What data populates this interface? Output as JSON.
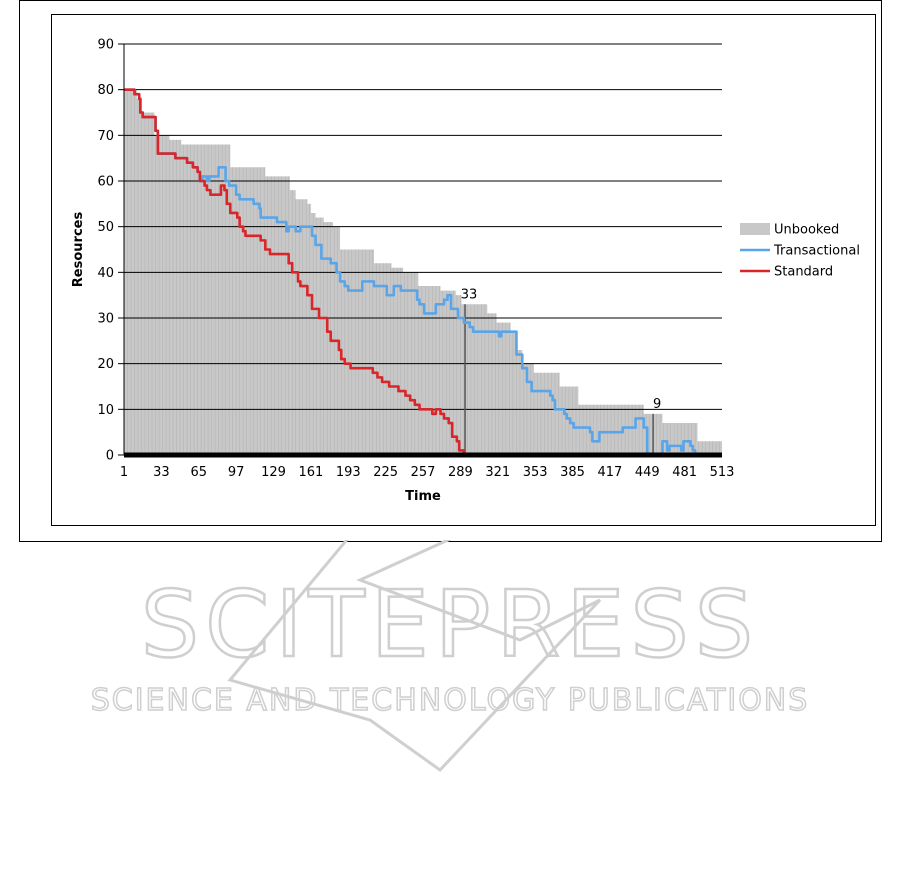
{
  "chart_data": {
    "type": "line",
    "xlabel": "Time",
    "ylabel": "Resources",
    "xlim": [
      1,
      513
    ],
    "ylim": [
      0,
      90
    ],
    "x_ticks": [
      "1",
      "33",
      "65",
      "97",
      "129",
      "161",
      "193",
      "225",
      "257",
      "289",
      "321",
      "353",
      "385",
      "417",
      "449",
      "481",
      "513"
    ],
    "y_ticks": [
      "0",
      "10",
      "20",
      "30",
      "40",
      "50",
      "60",
      "70",
      "80",
      "90"
    ],
    "grid": "horizontal",
    "legend_position": "right",
    "annotations": [
      {
        "x": 293,
        "y": 33,
        "label": "33"
      },
      {
        "x": 454,
        "y": 9,
        "label": "9"
      }
    ],
    "series": [
      {
        "name": "Unbooked",
        "kind": "area",
        "color": "#c8c8c8",
        "points": [
          [
            1,
            80
          ],
          [
            12,
            78
          ],
          [
            16,
            75
          ],
          [
            27,
            70
          ],
          [
            40,
            69
          ],
          [
            50,
            68
          ],
          [
            88,
            68
          ],
          [
            92,
            63
          ],
          [
            120,
            63
          ],
          [
            122,
            61
          ],
          [
            140,
            61
          ],
          [
            143,
            58
          ],
          [
            148,
            56
          ],
          [
            158,
            55
          ],
          [
            161,
            53
          ],
          [
            165,
            52
          ],
          [
            172,
            51
          ],
          [
            180,
            50
          ],
          [
            186,
            45
          ],
          [
            212,
            45
          ],
          [
            215,
            42
          ],
          [
            230,
            41
          ],
          [
            240,
            40
          ],
          [
            253,
            37
          ],
          [
            265,
            37
          ],
          [
            272,
            36
          ],
          [
            285,
            35
          ],
          [
            290,
            33
          ],
          [
            310,
            33
          ],
          [
            312,
            31
          ],
          [
            320,
            29
          ],
          [
            332,
            27
          ],
          [
            338,
            23
          ],
          [
            342,
            20
          ],
          [
            352,
            18
          ],
          [
            372,
            18
          ],
          [
            374,
            15
          ],
          [
            388,
            15
          ],
          [
            390,
            11
          ],
          [
            440,
            11
          ],
          [
            446,
            9
          ],
          [
            460,
            9
          ],
          [
            462,
            7
          ],
          [
            490,
            7
          ],
          [
            492,
            3
          ],
          [
            513,
            3
          ]
        ]
      },
      {
        "name": "Transactional",
        "kind": "line",
        "color": "#5aa5e8",
        "points": [
          [
            1,
            80
          ],
          [
            5,
            80
          ],
          [
            10,
            79
          ],
          [
            14,
            78
          ],
          [
            15,
            75
          ],
          [
            17,
            74
          ],
          [
            27,
            74
          ],
          [
            28,
            71
          ],
          [
            30,
            66
          ],
          [
            38,
            66
          ],
          [
            45,
            65
          ],
          [
            55,
            64
          ],
          [
            60,
            63
          ],
          [
            64,
            62
          ],
          [
            66,
            60
          ],
          [
            68,
            61
          ],
          [
            70,
            61
          ],
          [
            72,
            60
          ],
          [
            74,
            61
          ],
          [
            80,
            61
          ],
          [
            82,
            63
          ],
          [
            86,
            63
          ],
          [
            88,
            60
          ],
          [
            91,
            59
          ],
          [
            95,
            59
          ],
          [
            97,
            57
          ],
          [
            100,
            56
          ],
          [
            110,
            56
          ],
          [
            112,
            55
          ],
          [
            117,
            54
          ],
          [
            118,
            52
          ],
          [
            130,
            52
          ],
          [
            132,
            51
          ],
          [
            138,
            51
          ],
          [
            140,
            49
          ],
          [
            142,
            50
          ],
          [
            145,
            50
          ],
          [
            148,
            49
          ],
          [
            152,
            50
          ],
          [
            160,
            50
          ],
          [
            162,
            48
          ],
          [
            165,
            46
          ],
          [
            170,
            43
          ],
          [
            176,
            43
          ],
          [
            178,
            42
          ],
          [
            183,
            40
          ],
          [
            186,
            38
          ],
          [
            190,
            37
          ],
          [
            193,
            36
          ],
          [
            200,
            36
          ],
          [
            205,
            38
          ],
          [
            211,
            38
          ],
          [
            215,
            37
          ],
          [
            220,
            37
          ],
          [
            226,
            35
          ],
          [
            232,
            37
          ],
          [
            238,
            36
          ],
          [
            245,
            36
          ],
          [
            252,
            34
          ],
          [
            254,
            33
          ],
          [
            258,
            31
          ],
          [
            265,
            31
          ],
          [
            268,
            33
          ],
          [
            275,
            34
          ],
          [
            278,
            35
          ],
          [
            281,
            32
          ],
          [
            287,
            30
          ],
          [
            292,
            29
          ],
          [
            297,
            28
          ],
          [
            300,
            27
          ],
          [
            320,
            27
          ],
          [
            322,
            26
          ],
          [
            324,
            27
          ],
          [
            335,
            27
          ],
          [
            337,
            22
          ],
          [
            342,
            19
          ],
          [
            346,
            16
          ],
          [
            350,
            14
          ],
          [
            362,
            14
          ],
          [
            366,
            13
          ],
          [
            368,
            12
          ],
          [
            370,
            10
          ],
          [
            378,
            9
          ],
          [
            380,
            8
          ],
          [
            383,
            7
          ],
          [
            386,
            6
          ],
          [
            398,
            6
          ],
          [
            400,
            5
          ],
          [
            402,
            3
          ],
          [
            404,
            3
          ],
          [
            408,
            5
          ],
          [
            424,
            5
          ],
          [
            428,
            6
          ],
          [
            437,
            6
          ],
          [
            439,
            8
          ],
          [
            444,
            8
          ],
          [
            446,
            6
          ],
          [
            449,
            0
          ],
          [
            460,
            0
          ],
          [
            462,
            3
          ],
          [
            466,
            1
          ],
          [
            468,
            2
          ],
          [
            476,
            2
          ],
          [
            478,
            1
          ],
          [
            480,
            3
          ],
          [
            484,
            3
          ],
          [
            486,
            2
          ],
          [
            488,
            1
          ],
          [
            490,
            0
          ],
          [
            513,
            0
          ]
        ]
      },
      {
        "name": "Standard",
        "kind": "line",
        "color": "#d8262b",
        "points": [
          [
            1,
            80
          ],
          [
            5,
            80
          ],
          [
            10,
            79
          ],
          [
            14,
            78
          ],
          [
            15,
            75
          ],
          [
            17,
            74
          ],
          [
            27,
            74
          ],
          [
            28,
            71
          ],
          [
            30,
            66
          ],
          [
            38,
            66
          ],
          [
            45,
            65
          ],
          [
            55,
            64
          ],
          [
            60,
            63
          ],
          [
            64,
            62
          ],
          [
            66,
            60
          ],
          [
            70,
            59
          ],
          [
            72,
            58
          ],
          [
            75,
            57
          ],
          [
            82,
            57
          ],
          [
            84,
            59
          ],
          [
            87,
            58
          ],
          [
            89,
            55
          ],
          [
            92,
            53
          ],
          [
            98,
            52
          ],
          [
            100,
            50
          ],
          [
            103,
            49
          ],
          [
            105,
            48
          ],
          [
            115,
            48
          ],
          [
            118,
            47
          ],
          [
            122,
            45
          ],
          [
            126,
            44
          ],
          [
            140,
            44
          ],
          [
            142,
            42
          ],
          [
            145,
            40
          ],
          [
            150,
            38
          ],
          [
            152,
            37
          ],
          [
            156,
            37
          ],
          [
            158,
            35
          ],
          [
            162,
            32
          ],
          [
            168,
            30
          ],
          [
            175,
            27
          ],
          [
            178,
            25
          ],
          [
            185,
            23
          ],
          [
            187,
            21
          ],
          [
            190,
            20
          ],
          [
            195,
            19
          ],
          [
            210,
            19
          ],
          [
            214,
            18
          ],
          [
            218,
            17
          ],
          [
            222,
            16
          ],
          [
            228,
            15
          ],
          [
            236,
            14
          ],
          [
            242,
            13
          ],
          [
            246,
            12
          ],
          [
            250,
            11
          ],
          [
            254,
            10
          ],
          [
            263,
            10
          ],
          [
            265,
            9
          ],
          [
            268,
            10
          ],
          [
            272,
            9
          ],
          [
            275,
            8
          ],
          [
            279,
            7
          ],
          [
            282,
            4
          ],
          [
            286,
            3
          ],
          [
            288,
            1
          ],
          [
            292,
            0
          ],
          [
            513,
            0
          ]
        ]
      }
    ]
  },
  "watermark": {
    "title": "SCITEPRESS",
    "subtitle": "SCIENCE AND TECHNOLOGY PUBLICATIONS"
  }
}
